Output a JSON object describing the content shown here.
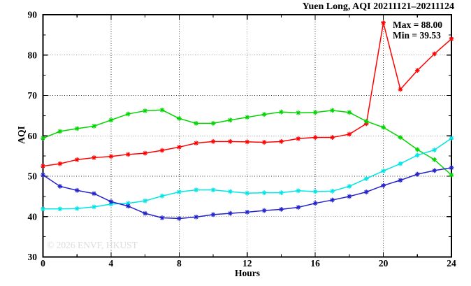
{
  "chart": {
    "title": "Yuen Long, AQI 20211121–20211124",
    "xlabel": "Hours",
    "ylabel": "AQI",
    "watermark": "© 2026 ENVF, HKUST",
    "annotation": {
      "max": "Max = 88.00",
      "min": "Min = 39.53"
    }
  },
  "chart_data": {
    "type": "line",
    "title": "Yuen Long, AQI 20211121–20211124",
    "xlabel": "Hours",
    "ylabel": "AQI",
    "xlim": [
      0,
      24
    ],
    "ylim": [
      30,
      90
    ],
    "grid": true,
    "legend_position": "none",
    "marker": "asterisk",
    "x_major_ticks": [
      0,
      4,
      8,
      12,
      16,
      20,
      24
    ],
    "x_minor_ticks": [
      2,
      6,
      10,
      14,
      18,
      22
    ],
    "y_major_ticks": [
      30,
      40,
      50,
      60,
      70,
      80,
      90
    ],
    "y_minor_ticks": [
      35,
      45,
      55,
      65,
      75,
      85
    ],
    "x_tick_labels": [
      "0",
      "4",
      "8",
      "12",
      "16",
      "20",
      "24"
    ],
    "y_tick_labels": [
      "30",
      "40",
      "50",
      "60",
      "70",
      "80",
      "90"
    ],
    "annotations": [
      "Max = 88.00",
      "Min = 39.53"
    ],
    "x": [
      0,
      1,
      2,
      3,
      4,
      5,
      6,
      7,
      8,
      9,
      10,
      11,
      12,
      13,
      14,
      15,
      16,
      17,
      18,
      19,
      20,
      21,
      22,
      23,
      24
    ],
    "series": [
      {
        "name": "red",
        "color": "#ff0000",
        "values": [
          52.5,
          53.1,
          54.1,
          54.6,
          54.9,
          55.4,
          55.7,
          56.4,
          57.2,
          58.2,
          58.6,
          58.6,
          58.5,
          58.4,
          58.6,
          59.3,
          59.6,
          59.6,
          60.4,
          63.0,
          88.0,
          71.5,
          76.2,
          80.3,
          84.0
        ]
      },
      {
        "name": "green",
        "color": "#00d500",
        "values": [
          59.4,
          61.1,
          61.8,
          62.4,
          63.9,
          65.4,
          66.2,
          66.4,
          64.3,
          63.1,
          63.1,
          63.9,
          64.6,
          65.3,
          65.9,
          65.7,
          65.8,
          66.3,
          65.8,
          63.6,
          62.1,
          59.6,
          56.6,
          54.1,
          50.3
        ]
      },
      {
        "name": "cyan",
        "color": "#00e5e5",
        "values": [
          41.9,
          41.9,
          42.0,
          42.4,
          43.1,
          43.3,
          43.9,
          45.1,
          46.1,
          46.6,
          46.6,
          46.2,
          45.8,
          45.9,
          45.9,
          46.4,
          46.2,
          46.3,
          47.5,
          49.4,
          51.3,
          53.1,
          55.2,
          56.5,
          59.4
        ]
      },
      {
        "name": "blue",
        "color": "#2222cc",
        "values": [
          50.3,
          47.5,
          46.5,
          45.7,
          43.7,
          42.6,
          40.8,
          39.7,
          39.53,
          39.9,
          40.5,
          40.8,
          41.1,
          41.5,
          41.8,
          42.3,
          43.3,
          44.1,
          45.0,
          46.1,
          47.7,
          49.0,
          50.5,
          51.4,
          52.1
        ]
      }
    ]
  }
}
